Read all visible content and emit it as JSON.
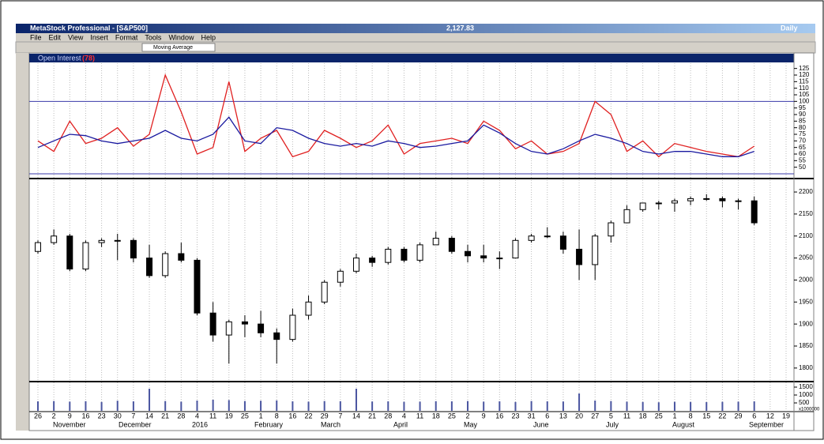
{
  "window": {
    "title": "MetaStock Professional - [S&P500]",
    "last_price": "2,127.83",
    "period": "Daily",
    "menu": [
      "File",
      "Edit",
      "View",
      "Insert",
      "Format",
      "Tools",
      "Window",
      "Help"
    ],
    "toolbar_dropdown": "Moving Average"
  },
  "chart_data": [
    {
      "type": "line",
      "title": "Open Interest",
      "title_note": "(78)",
      "ylim": [
        42,
        129
      ],
      "yticks": [
        125,
        120,
        115,
        110,
        105,
        100,
        95,
        90,
        85,
        80,
        75,
        70,
        65,
        60,
        55,
        50
      ],
      "hlines": [
        100,
        45
      ],
      "hline_color": "#3a3aa8",
      "series": [
        {
          "color": "#e02020",
          "values": [
            70,
            62,
            85,
            68,
            72,
            80,
            66,
            75,
            120,
            92,
            60,
            65,
            115,
            62,
            72,
            78,
            58,
            62,
            78,
            72,
            65,
            70,
            82,
            60,
            68,
            70,
            72,
            68,
            85,
            78,
            64,
            70,
            60,
            62,
            68,
            100,
            90,
            62,
            70,
            58,
            68,
            65,
            62,
            60,
            58,
            66,
            null,
            null
          ]
        },
        {
          "color": "#1a1aa0",
          "values": [
            65,
            70,
            75,
            74,
            70,
            68,
            70,
            72,
            78,
            72,
            70,
            75,
            88,
            70,
            68,
            80,
            78,
            72,
            68,
            66,
            68,
            66,
            70,
            68,
            65,
            66,
            68,
            70,
            82,
            76,
            68,
            62,
            60,
            64,
            70,
            75,
            72,
            68,
            62,
            60,
            62,
            62,
            60,
            58,
            58,
            62,
            null,
            null
          ]
        }
      ]
    },
    {
      "type": "candlestick",
      "ylim": [
        1771,
        2227
      ],
      "yticks": [
        2200,
        2150,
        2100,
        2050,
        2000,
        1950,
        1900,
        1850,
        1800
      ],
      "up_color": "#ffffff",
      "down_color": "#000000",
      "open": [
        2065,
        2085,
        2100,
        2025,
        2085,
        2090,
        2090,
        2050,
        2010,
        2060,
        2045,
        1925,
        1875,
        1905,
        1900,
        1880,
        1865,
        1920,
        1950,
        1995,
        2020,
        2050,
        2040,
        2070,
        2045,
        2080,
        2095,
        2065,
        2055,
        2050,
        2050,
        2090,
        2100,
        2100,
        2070,
        2035,
        2100,
        2130,
        2160,
        2175,
        2175,
        2180,
        2185,
        2185,
        2180,
        2180,
        null,
        null
      ],
      "high": [
        2090,
        2115,
        2105,
        2090,
        2095,
        2105,
        2095,
        2080,
        2065,
        2085,
        2050,
        1950,
        1910,
        1920,
        1930,
        1890,
        1935,
        1965,
        2000,
        2025,
        2060,
        2055,
        2075,
        2075,
        2085,
        2110,
        2100,
        2080,
        2080,
        2065,
        2095,
        2105,
        2120,
        2110,
        2115,
        2105,
        2135,
        2170,
        2175,
        2180,
        2185,
        2190,
        2195,
        2190,
        2185,
        2190,
        null,
        null
      ],
      "low": [
        2060,
        2080,
        2020,
        2020,
        2075,
        2045,
        2040,
        2005,
        2005,
        2040,
        1920,
        1860,
        1810,
        1870,
        1870,
        1810,
        1860,
        1910,
        1945,
        1985,
        2015,
        2030,
        2035,
        2040,
        2040,
        2080,
        2060,
        2040,
        2040,
        2025,
        2050,
        2085,
        2095,
        2060,
        2000,
        2000,
        2085,
        2130,
        2155,
        2160,
        2155,
        2170,
        2180,
        2165,
        2160,
        2125,
        null,
        null
      ],
      "close": [
        2085,
        2100,
        2025,
        2085,
        2090,
        2090,
        2050,
        2010,
        2060,
        2045,
        1925,
        1875,
        1905,
        1900,
        1880,
        1865,
        1920,
        1950,
        1995,
        2020,
        2050,
        2040,
        2070,
        2045,
        2080,
        2095,
        2065,
        2055,
        2050,
        2050,
        2090,
        2100,
        2100,
        2070,
        2035,
        2100,
        2130,
        2160,
        2175,
        2175,
        2180,
        2185,
        2185,
        2180,
        2180,
        2130,
        null,
        null
      ]
    },
    {
      "type": "bar",
      "ylim": [
        0,
        1800
      ],
      "yticks": [
        1500,
        1000,
        500
      ],
      "unit_label": "x1000000",
      "color": "#4a55a0",
      "values": [
        600,
        620,
        580,
        610,
        560,
        640,
        600,
        1400,
        620,
        580,
        650,
        700,
        680,
        620,
        640,
        660,
        600,
        580,
        620,
        610,
        1400,
        590,
        600,
        570,
        580,
        610,
        600,
        620,
        580,
        600,
        560,
        620,
        600,
        590,
        1100,
        650,
        620,
        580,
        560,
        540,
        570,
        560,
        550,
        570,
        580,
        600,
        null,
        null
      ],
      "categories": [
        "26",
        "2",
        "9",
        "16",
        "23",
        "30",
        "7",
        "14",
        "21",
        "28",
        "4",
        "11",
        "19",
        "25",
        "1",
        "8",
        "16",
        "22",
        "29",
        "7",
        "14",
        "21",
        "28",
        "4",
        "11",
        "18",
        "25",
        "2",
        "9",
        "16",
        "23",
        "31",
        "6",
        "13",
        "20",
        "27",
        "5",
        "11",
        "18",
        "25",
        "1",
        "8",
        "15",
        "22",
        "29",
        "6",
        "12",
        "19"
      ],
      "month_labels": [
        "November",
        "December",
        "2016",
        "February",
        "March",
        "April",
        "May",
        "June",
        "July",
        "August",
        "September"
      ]
    }
  ]
}
